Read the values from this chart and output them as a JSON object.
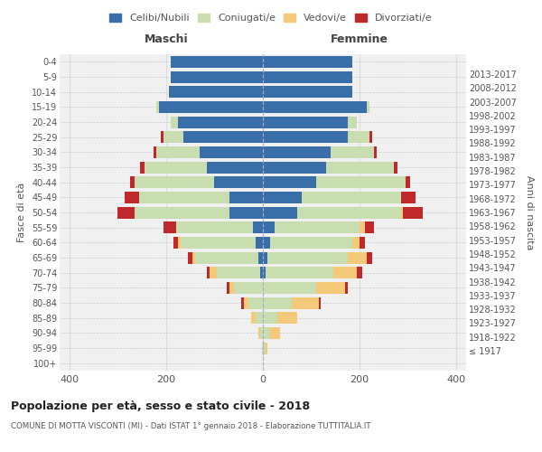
{
  "age_groups": [
    "100+",
    "95-99",
    "90-94",
    "85-89",
    "80-84",
    "75-79",
    "70-74",
    "65-69",
    "60-64",
    "55-59",
    "50-54",
    "45-49",
    "40-44",
    "35-39",
    "30-34",
    "25-29",
    "20-24",
    "15-19",
    "10-14",
    "5-9",
    "0-4"
  ],
  "birth_years": [
    "≤ 1917",
    "1918-1922",
    "1923-1927",
    "1928-1932",
    "1933-1937",
    "1938-1942",
    "1943-1947",
    "1948-1952",
    "1953-1957",
    "1958-1962",
    "1963-1967",
    "1968-1972",
    "1973-1977",
    "1978-1982",
    "1983-1987",
    "1988-1992",
    "1993-1997",
    "1998-2002",
    "2003-2007",
    "2008-2012",
    "2013-2017"
  ],
  "male_celibi": [
    0,
    0,
    0,
    0,
    0,
    0,
    5,
    10,
    15,
    20,
    70,
    70,
    100,
    115,
    130,
    165,
    175,
    215,
    195,
    190,
    190
  ],
  "male_coniugati": [
    0,
    2,
    5,
    15,
    30,
    60,
    90,
    130,
    155,
    160,
    195,
    185,
    165,
    130,
    90,
    40,
    15,
    5,
    0,
    0,
    0
  ],
  "male_vedovi": [
    0,
    0,
    5,
    10,
    10,
    10,
    15,
    5,
    5,
    0,
    0,
    0,
    0,
    0,
    0,
    0,
    0,
    0,
    0,
    0,
    0
  ],
  "male_divorziati": [
    0,
    0,
    0,
    0,
    5,
    5,
    5,
    10,
    10,
    25,
    35,
    30,
    10,
    8,
    5,
    5,
    0,
    0,
    0,
    0,
    0
  ],
  "fem_celibi": [
    0,
    0,
    0,
    0,
    0,
    0,
    5,
    10,
    15,
    25,
    70,
    80,
    110,
    130,
    140,
    175,
    175,
    215,
    185,
    185,
    185
  ],
  "fem_coniugati": [
    0,
    5,
    15,
    30,
    60,
    110,
    140,
    165,
    170,
    175,
    215,
    205,
    185,
    140,
    90,
    45,
    20,
    5,
    0,
    0,
    0
  ],
  "fem_vedovi": [
    0,
    5,
    20,
    40,
    55,
    60,
    50,
    40,
    15,
    10,
    5,
    0,
    0,
    0,
    0,
    0,
    0,
    0,
    0,
    0,
    0
  ],
  "fem_divorziati": [
    0,
    0,
    0,
    0,
    5,
    5,
    10,
    10,
    10,
    20,
    40,
    30,
    10,
    8,
    5,
    5,
    0,
    0,
    0,
    0,
    0
  ],
  "colors": {
    "celibi": "#3a6ea8",
    "coniugati": "#c8ddb0",
    "vedovi": "#f5c97a",
    "divorziati": "#c0292b"
  },
  "xlim": 420,
  "title": "Popolazione per età, sesso e stato civile - 2018",
  "subtitle": "COMUNE DI MOTTA VISCONTI (MI) - Dati ISTAT 1° gennaio 2018 - Elaborazione TUTTITALIA.IT",
  "ylabel": "Fasce di età",
  "ylabel_right": "Anni di nascita",
  "legend_labels": [
    "Celibi/Nubili",
    "Coniugati/e",
    "Vedovi/e",
    "Divorziati/e"
  ],
  "bg_color": "#f0f0f0",
  "grid_color": "#dddddd",
  "maschi_label": "Maschi",
  "femmine_label": "Femmine"
}
